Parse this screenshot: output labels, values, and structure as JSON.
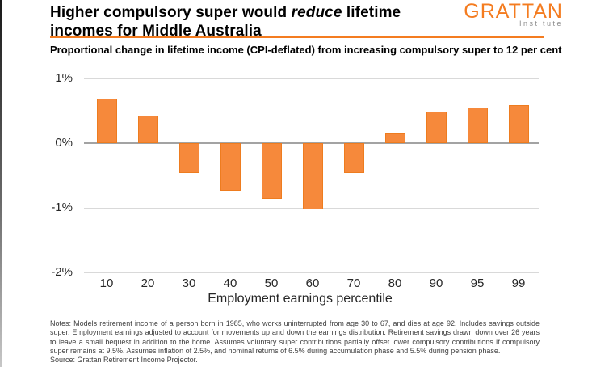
{
  "header": {
    "title_pre": "Higher compulsory super would ",
    "title_italic": "reduce",
    "title_post": " lifetime incomes for Middle Australia",
    "logo_text": "GRATTAN",
    "logo_sub": "Institute"
  },
  "subtitle": "Proportional change in lifetime income (CPI-deflated) from increasing compulsory super to 12 per cent",
  "chart_data": {
    "type": "bar",
    "categories": [
      "10",
      "20",
      "30",
      "40",
      "50",
      "60",
      "70",
      "80",
      "90",
      "95",
      "99"
    ],
    "values": [
      0.69,
      0.43,
      -0.46,
      -0.74,
      -0.86,
      -1.02,
      -0.46,
      0.15,
      0.49,
      0.55,
      0.59
    ],
    "title": "",
    "xlabel": "Employment earnings percentile",
    "ylabel": "",
    "ylim": [
      -2,
      1
    ],
    "y_ticks": [
      {
        "label": "1%",
        "value": 1
      },
      {
        "label": "0%",
        "value": 0
      },
      {
        "label": "-1%",
        "value": -1
      },
      {
        "label": "-2%",
        "value": -2
      }
    ],
    "grid": true,
    "legend": false,
    "bar_fill": "#F6893B",
    "bar_border": "#EE7C1F",
    "gridline_color": "#D9D9D9",
    "zero_line_color": "#A3A3A3",
    "accent_orange": "#F47C20"
  },
  "notes": {
    "notes_text": "Notes: Models retirement income of a person born in 1985, who works uninterrupted from age 30 to 67, and dies at age 92. Includes savings outside super. Employment earnings adjusted to account for movements up and down the earnings distribution. Retirement savings drawn down over 26 years to leave a small bequest in addition to the home. Assumes voluntary super contributions partially offset lower compulsory contributions if compulsory super remains at 9.5%. Assumes inflation of 2.5%, and nominal returns of 6.5% during accumulation phase and 5.5% during pension phase.",
    "source_text": "Source: Grattan Retirement Income Projector."
  }
}
